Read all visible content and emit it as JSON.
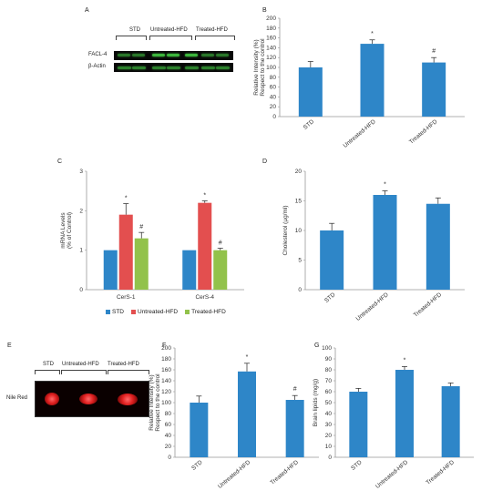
{
  "panels": {
    "A": {
      "letter": "A"
    },
    "B": {
      "letter": "B"
    },
    "C": {
      "letter": "C"
    },
    "D": {
      "letter": "D"
    },
    "E": {
      "letter": "E"
    },
    "F": {
      "letter": "F"
    },
    "G": {
      "letter": "G"
    }
  },
  "blot_a": {
    "columns": [
      "STD",
      "Untreated-HFD",
      "Treated-HFD"
    ],
    "rows": [
      "FACL-4",
      "β-Actin"
    ],
    "band_color": "#3fbf3f"
  },
  "blot_e": {
    "columns": [
      "STD",
      "Untreated-HFD",
      "Treated-HFD"
    ],
    "row_label": "Nile Red",
    "stain_color": "#e02020"
  },
  "colors": {
    "blue": "#2e86c8",
    "red": "#e34f4f",
    "green": "#92c24b"
  },
  "chart_data": [
    {
      "id": "B",
      "type": "bar",
      "categories": [
        "STD",
        "Untreated-HFD",
        "Treated-HFD"
      ],
      "values": [
        100,
        148,
        110
      ],
      "errors": [
        12,
        8,
        10
      ],
      "annotations": [
        "",
        "*",
        "#"
      ],
      "ylabel": "Relative Intensity (%)\nRespect to the control",
      "ylim": [
        0,
        200
      ],
      "yticks": [
        0,
        20,
        40,
        60,
        80,
        100,
        120,
        140,
        160,
        180,
        200
      ]
    },
    {
      "id": "C",
      "type": "bar",
      "categories": [
        "CerS-1",
        "CerS-4"
      ],
      "series": [
        {
          "name": "STD",
          "values": [
            1.0,
            1.0
          ],
          "errors": [
            0,
            0
          ],
          "annotations": [
            "",
            ""
          ]
        },
        {
          "name": "Untreated-HFD",
          "values": [
            1.9,
            2.2
          ],
          "errors": [
            0.28,
            0.05
          ],
          "annotations": [
            "*",
            "*"
          ]
        },
        {
          "name": "Treated-HFD",
          "values": [
            1.3,
            1.0
          ],
          "errors": [
            0.15,
            0.05
          ],
          "annotations": [
            "#",
            "#"
          ]
        }
      ],
      "ylabel": "mRNA Levels\n(% of Control)",
      "ylim": [
        0,
        3
      ],
      "yticks": [
        0,
        1,
        2,
        3
      ],
      "legend": "bottom"
    },
    {
      "id": "D",
      "type": "bar",
      "categories": [
        "STD",
        "Untreated-HFD",
        "Treated-HFD"
      ],
      "values": [
        10,
        16,
        14.5
      ],
      "errors": [
        1.2,
        0.7,
        1.0
      ],
      "annotations": [
        "",
        "*",
        ""
      ],
      "ylabel": "Cholesterol (µg/ml)",
      "ylim": [
        0,
        20
      ],
      "yticks": [
        0,
        5,
        10,
        15,
        20
      ]
    },
    {
      "id": "F",
      "type": "bar",
      "categories": [
        "STD",
        "Untreated-HFD",
        "Treated-HFD"
      ],
      "values": [
        100,
        157,
        105
      ],
      "errors": [
        12,
        15,
        8
      ],
      "annotations": [
        "",
        "*",
        "#"
      ],
      "ylabel": "Relative Intensity (%)\nRespect to the control",
      "ylim": [
        0,
        200
      ],
      "yticks": [
        0,
        20,
        40,
        60,
        80,
        100,
        120,
        140,
        160,
        180,
        200
      ]
    },
    {
      "id": "G",
      "type": "bar",
      "categories": [
        "STD",
        "Untreated-HFD",
        "Treated-HFD"
      ],
      "values": [
        60,
        80,
        65
      ],
      "errors": [
        3,
        3,
        3
      ],
      "annotations": [
        "",
        "*",
        ""
      ],
      "ylabel": "Brain lipids (mg/g)",
      "ylim": [
        0,
        100
      ],
      "yticks": [
        0,
        10,
        20,
        30,
        40,
        50,
        60,
        70,
        80,
        90,
        100
      ]
    }
  ]
}
